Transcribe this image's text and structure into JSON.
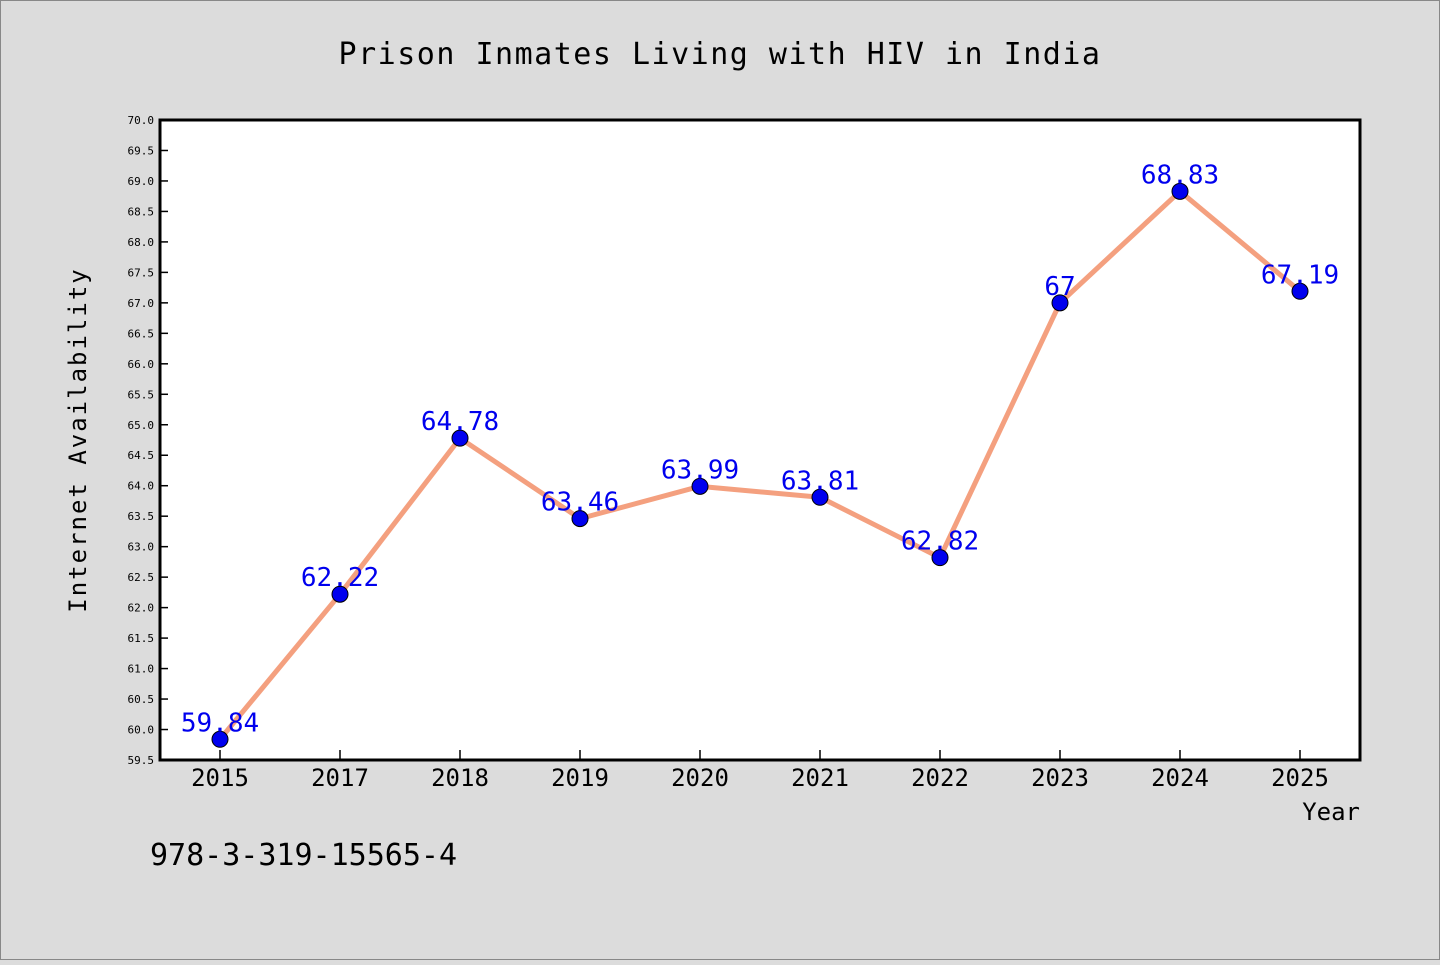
{
  "chart_data": {
    "type": "line",
    "title": "Prison Inmates Living with HIV in India",
    "xlabel": "Year",
    "ylabel": "Internet Availability",
    "categories": [
      "2015",
      "2017",
      "2018",
      "2019",
      "2020",
      "2021",
      "2022",
      "2023",
      "2024",
      "2025"
    ],
    "values": [
      59.84,
      62.22,
      64.78,
      63.46,
      63.99,
      63.81,
      62.82,
      67,
      68.83,
      67.19
    ],
    "data_labels": [
      "59.84",
      "62.22",
      "64.78",
      "63.46",
      "63.99",
      "63.81",
      "62.82",
      "67",
      "68.83",
      "67.19"
    ],
    "ylim": [
      59.5,
      70.0
    ],
    "yticks": [
      "59.5",
      "60.0",
      "60.5",
      "61.0",
      "61.5",
      "62.0",
      "62.5",
      "63.0",
      "63.5",
      "64.0",
      "64.5",
      "65.0",
      "65.5",
      "66.0",
      "66.5",
      "67.0",
      "67.5",
      "68.0",
      "68.5",
      "69.0",
      "69.5",
      "70.0"
    ],
    "grid": false,
    "line_color": "#f4a07f",
    "marker_color": "#0000ee",
    "label_color": "#0000ee"
  },
  "footer": {
    "isbn": "978-3-319-15565-4"
  }
}
